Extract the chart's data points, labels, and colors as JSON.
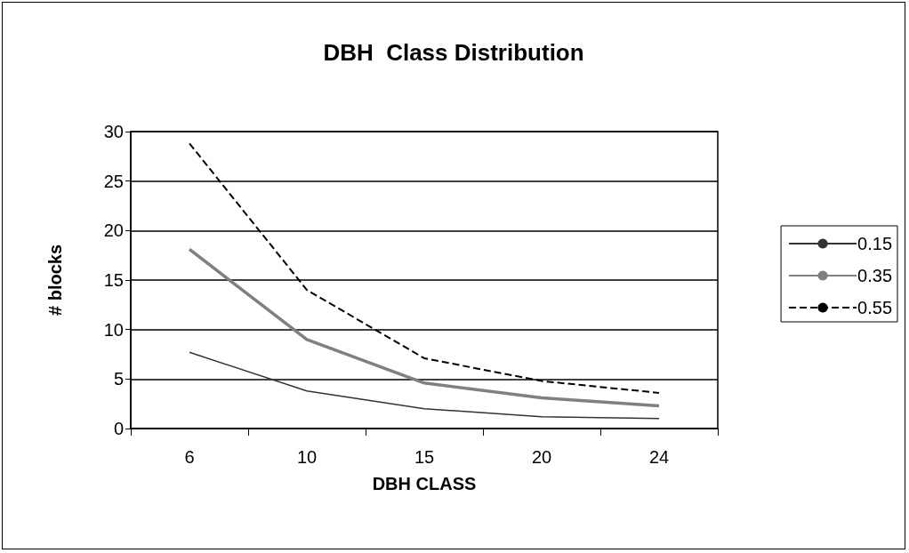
{
  "chart_data": {
    "type": "line",
    "title": "DBH  Class Distribution",
    "xlabel": "DBH CLASS",
    "ylabel": "# blocks",
    "categories": [
      "6",
      "10",
      "15",
      "20",
      "24"
    ],
    "series": [
      {
        "name": "0.15",
        "color": "#333333",
        "line_style": "solid",
        "values": [
          7.7,
          3.8,
          2.0,
          1.2,
          1.0
        ]
      },
      {
        "name": "0.35",
        "color": "#808080",
        "line_style": "solid",
        "values": [
          18.1,
          9.0,
          4.6,
          3.1,
          2.3
        ]
      },
      {
        "name": "0.55",
        "color": "#000000",
        "line_style": "dashed",
        "values": [
          28.8,
          14.0,
          7.1,
          4.8,
          3.6
        ]
      }
    ],
    "ylim": [
      0,
      30
    ],
    "yticks": [
      0,
      5,
      10,
      15,
      20,
      25,
      30
    ],
    "grid": "y",
    "legend": "right",
    "marker": "none"
  }
}
